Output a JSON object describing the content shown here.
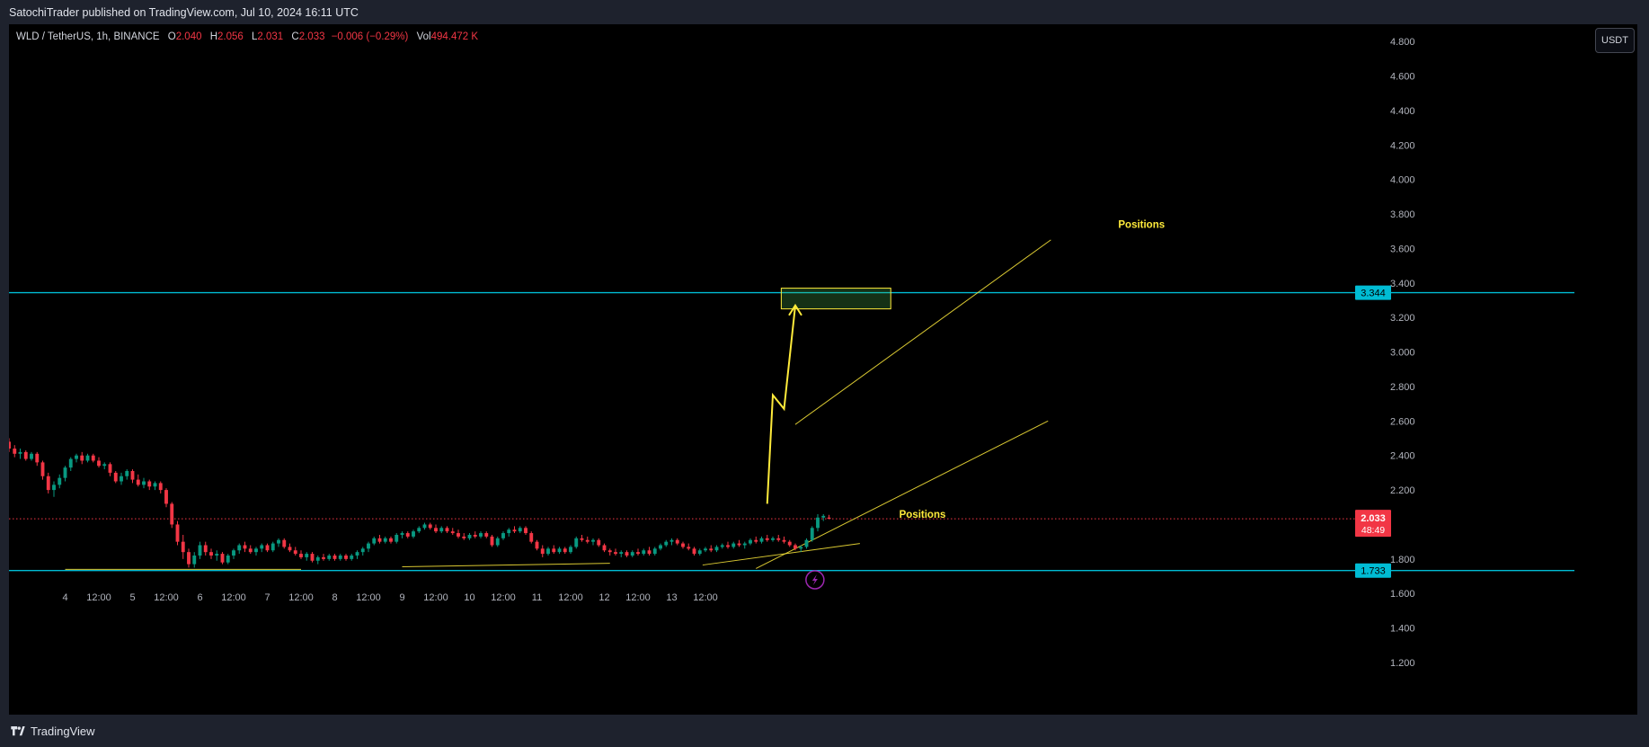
{
  "header": {
    "published": "SatochiTrader published on TradingView.com, Jul 10, 2024 16:11 UTC"
  },
  "legend": {
    "symbol": "WLD / TetherUS, 1h, BINANCE",
    "open_label": "O",
    "open": "2.040",
    "high_label": "H",
    "high": "2.056",
    "low_label": "L",
    "low": "2.031",
    "close_label": "C",
    "close": "2.033",
    "change": "−0.006 (−0.29%)",
    "vol_label": "Vol",
    "vol": "494.472 K"
  },
  "currency_button": "USDT",
  "brand": {
    "name": "TradingView",
    "icon": "tradingview-logo-icon"
  },
  "colors": {
    "background": "#000000",
    "up": "#089981",
    "down": "#f23645",
    "horizontal_level": "#00bcd4",
    "drawing": "#ffeb3b",
    "last_price_badge": "#f23645",
    "lightning": "#9c27b0"
  },
  "chart_data": {
    "type": "candlestick",
    "x_tick_labels": [
      "4",
      "12:00",
      "5",
      "12:00",
      "6",
      "12:00",
      "7",
      "12:00",
      "8",
      "12:00",
      "9",
      "12:00",
      "10",
      "12:00",
      "11",
      "12:00",
      "12",
      "12:00",
      "13",
      "12:00"
    ],
    "y_tick_labels": [
      "4.800",
      "4.600",
      "4.400",
      "4.200",
      "4.000",
      "3.800",
      "3.600",
      "3.400",
      "3.200",
      "3.000",
      "2.800",
      "2.600",
      "2.400",
      "2.200",
      "1.800",
      "1.600",
      "1.400",
      "1.200"
    ],
    "ylim": [
      1.08,
      4.9
    ],
    "x_range_hours": [
      -20,
      460
    ],
    "grid": false,
    "price_levels": [
      {
        "value": 3.344,
        "label": "3.344"
      },
      {
        "value": 1.733,
        "label": "1.733"
      }
    ],
    "last_price": {
      "value": 2.033,
      "label": "2.033",
      "countdown": "48:49"
    },
    "annotations": [
      {
        "text": "Positions",
        "x_hour": 375,
        "y": 3.72
      },
      {
        "text": "Positions",
        "x_hour": 297,
        "y": 2.04
      }
    ],
    "target_zone": {
      "x_start_hour": 255,
      "x_end_hour": 294,
      "y_low": 3.25,
      "y_high": 3.37
    },
    "projection_path": [
      [
        250,
        2.12
      ],
      [
        252,
        2.75
      ],
      [
        256,
        2.67
      ],
      [
        260,
        3.27
      ]
    ],
    "trend_lines": [
      {
        "from": [
          0,
          1.74
        ],
        "to": [
          84,
          1.74
        ]
      },
      {
        "from": [
          120,
          1.755
        ],
        "to": [
          194,
          1.775
        ]
      },
      {
        "from": [
          227,
          1.765
        ],
        "to": [
          283,
          1.89
        ]
      },
      {
        "from": [
          246,
          1.745
        ],
        "to": [
          350,
          2.6
        ]
      },
      {
        "from": [
          260,
          2.58
        ],
        "to": [
          351,
          3.65
        ]
      }
    ],
    "candles": [
      {
        "t": -20,
        "o": 2.48,
        "h": 2.5,
        "l": 2.42,
        "c": 2.44
      },
      {
        "t": -18,
        "o": 2.44,
        "h": 2.46,
        "l": 2.39,
        "c": 2.41
      },
      {
        "t": -16,
        "o": 2.41,
        "h": 2.44,
        "l": 2.38,
        "c": 2.42
      },
      {
        "t": -14,
        "o": 2.42,
        "h": 2.43,
        "l": 2.37,
        "c": 2.38
      },
      {
        "t": -12,
        "o": 2.38,
        "h": 2.42,
        "l": 2.37,
        "c": 2.41
      },
      {
        "t": -10,
        "o": 2.41,
        "h": 2.42,
        "l": 2.34,
        "c": 2.36
      },
      {
        "t": -8,
        "o": 2.36,
        "h": 2.37,
        "l": 2.26,
        "c": 2.28
      },
      {
        "t": -6,
        "o": 2.28,
        "h": 2.3,
        "l": 2.18,
        "c": 2.2
      },
      {
        "t": -4,
        "o": 2.2,
        "h": 2.25,
        "l": 2.16,
        "c": 2.23
      },
      {
        "t": -2,
        "o": 2.23,
        "h": 2.29,
        "l": 2.21,
        "c": 2.27
      },
      {
        "t": 0,
        "o": 2.27,
        "h": 2.34,
        "l": 2.25,
        "c": 2.33
      },
      {
        "t": 2,
        "o": 2.33,
        "h": 2.39,
        "l": 2.31,
        "c": 2.38
      },
      {
        "t": 4,
        "o": 2.38,
        "h": 2.41,
        "l": 2.36,
        "c": 2.4
      },
      {
        "t": 6,
        "o": 2.4,
        "h": 2.42,
        "l": 2.35,
        "c": 2.37
      },
      {
        "t": 8,
        "o": 2.37,
        "h": 2.41,
        "l": 2.36,
        "c": 2.4
      },
      {
        "t": 10,
        "o": 2.4,
        "h": 2.41,
        "l": 2.36,
        "c": 2.37
      },
      {
        "t": 12,
        "o": 2.37,
        "h": 2.39,
        "l": 2.33,
        "c": 2.34
      },
      {
        "t": 14,
        "o": 2.34,
        "h": 2.36,
        "l": 2.32,
        "c": 2.35
      },
      {
        "t": 16,
        "o": 2.35,
        "h": 2.36,
        "l": 2.28,
        "c": 2.3
      },
      {
        "t": 18,
        "o": 2.3,
        "h": 2.31,
        "l": 2.24,
        "c": 2.25
      },
      {
        "t": 20,
        "o": 2.25,
        "h": 2.3,
        "l": 2.23,
        "c": 2.28
      },
      {
        "t": 22,
        "o": 2.28,
        "h": 2.32,
        "l": 2.26,
        "c": 2.31
      },
      {
        "t": 24,
        "o": 2.31,
        "h": 2.32,
        "l": 2.24,
        "c": 2.26
      },
      {
        "t": 26,
        "o": 2.26,
        "h": 2.29,
        "l": 2.22,
        "c": 2.23
      },
      {
        "t": 28,
        "o": 2.23,
        "h": 2.27,
        "l": 2.21,
        "c": 2.25
      },
      {
        "t": 30,
        "o": 2.25,
        "h": 2.26,
        "l": 2.2,
        "c": 2.22
      },
      {
        "t": 32,
        "o": 2.22,
        "h": 2.25,
        "l": 2.2,
        "c": 2.24
      },
      {
        "t": 34,
        "o": 2.24,
        "h": 2.25,
        "l": 2.18,
        "c": 2.2
      },
      {
        "t": 36,
        "o": 2.2,
        "h": 2.21,
        "l": 2.1,
        "c": 2.12
      },
      {
        "t": 38,
        "o": 2.12,
        "h": 2.13,
        "l": 1.98,
        "c": 2.0
      },
      {
        "t": 40,
        "o": 2.0,
        "h": 2.02,
        "l": 1.88,
        "c": 1.9
      },
      {
        "t": 42,
        "o": 1.9,
        "h": 1.94,
        "l": 1.8,
        "c": 1.84
      },
      {
        "t": 44,
        "o": 1.84,
        "h": 1.86,
        "l": 1.75,
        "c": 1.77
      },
      {
        "t": 46,
        "o": 1.77,
        "h": 1.84,
        "l": 1.75,
        "c": 1.82
      },
      {
        "t": 48,
        "o": 1.82,
        "h": 1.9,
        "l": 1.8,
        "c": 1.88
      },
      {
        "t": 50,
        "o": 1.88,
        "h": 1.9,
        "l": 1.82,
        "c": 1.84
      },
      {
        "t": 52,
        "o": 1.84,
        "h": 1.86,
        "l": 1.8,
        "c": 1.82
      },
      {
        "t": 54,
        "o": 1.82,
        "h": 1.85,
        "l": 1.79,
        "c": 1.83
      },
      {
        "t": 56,
        "o": 1.83,
        "h": 1.84,
        "l": 1.77,
        "c": 1.78
      },
      {
        "t": 58,
        "o": 1.78,
        "h": 1.83,
        "l": 1.77,
        "c": 1.82
      },
      {
        "t": 60,
        "o": 1.82,
        "h": 1.86,
        "l": 1.8,
        "c": 1.85
      },
      {
        "t": 62,
        "o": 1.85,
        "h": 1.89,
        "l": 1.83,
        "c": 1.88
      },
      {
        "t": 64,
        "o": 1.88,
        "h": 1.9,
        "l": 1.84,
        "c": 1.86
      },
      {
        "t": 66,
        "o": 1.86,
        "h": 1.88,
        "l": 1.83,
        "c": 1.84
      },
      {
        "t": 68,
        "o": 1.84,
        "h": 1.87,
        "l": 1.82,
        "c": 1.86
      },
      {
        "t": 70,
        "o": 1.86,
        "h": 1.89,
        "l": 1.84,
        "c": 1.88
      },
      {
        "t": 72,
        "o": 1.88,
        "h": 1.89,
        "l": 1.84,
        "c": 1.85
      },
      {
        "t": 74,
        "o": 1.85,
        "h": 1.9,
        "l": 1.84,
        "c": 1.89
      },
      {
        "t": 76,
        "o": 1.89,
        "h": 1.92,
        "l": 1.87,
        "c": 1.91
      },
      {
        "t": 78,
        "o": 1.91,
        "h": 1.92,
        "l": 1.86,
        "c": 1.87
      },
      {
        "t": 80,
        "o": 1.87,
        "h": 1.89,
        "l": 1.84,
        "c": 1.85
      },
      {
        "t": 82,
        "o": 1.85,
        "h": 1.87,
        "l": 1.82,
        "c": 1.83
      },
      {
        "t": 84,
        "o": 1.83,
        "h": 1.85,
        "l": 1.8,
        "c": 1.81
      },
      {
        "t": 86,
        "o": 1.81,
        "h": 1.84,
        "l": 1.79,
        "c": 1.83
      },
      {
        "t": 88,
        "o": 1.83,
        "h": 1.84,
        "l": 1.78,
        "c": 1.79
      },
      {
        "t": 90,
        "o": 1.79,
        "h": 1.82,
        "l": 1.77,
        "c": 1.81
      },
      {
        "t": 92,
        "o": 1.81,
        "h": 1.83,
        "l": 1.79,
        "c": 1.8
      },
      {
        "t": 94,
        "o": 1.8,
        "h": 1.83,
        "l": 1.79,
        "c": 1.82
      },
      {
        "t": 96,
        "o": 1.82,
        "h": 1.83,
        "l": 1.79,
        "c": 1.8
      },
      {
        "t": 98,
        "o": 1.8,
        "h": 1.83,
        "l": 1.79,
        "c": 1.82
      },
      {
        "t": 100,
        "o": 1.82,
        "h": 1.83,
        "l": 1.79,
        "c": 1.8
      },
      {
        "t": 102,
        "o": 1.8,
        "h": 1.83,
        "l": 1.79,
        "c": 1.82
      },
      {
        "t": 104,
        "o": 1.82,
        "h": 1.85,
        "l": 1.8,
        "c": 1.84
      },
      {
        "t": 106,
        "o": 1.84,
        "h": 1.87,
        "l": 1.82,
        "c": 1.86
      },
      {
        "t": 108,
        "o": 1.86,
        "h": 1.9,
        "l": 1.84,
        "c": 1.89
      },
      {
        "t": 110,
        "o": 1.89,
        "h": 1.93,
        "l": 1.88,
        "c": 1.92
      },
      {
        "t": 112,
        "o": 1.92,
        "h": 1.94,
        "l": 1.89,
        "c": 1.9
      },
      {
        "t": 114,
        "o": 1.9,
        "h": 1.93,
        "l": 1.89,
        "c": 1.92
      },
      {
        "t": 116,
        "o": 1.92,
        "h": 1.93,
        "l": 1.89,
        "c": 1.9
      },
      {
        "t": 118,
        "o": 1.9,
        "h": 1.95,
        "l": 1.89,
        "c": 1.94
      },
      {
        "t": 120,
        "o": 1.94,
        "h": 1.96,
        "l": 1.92,
        "c": 1.95
      },
      {
        "t": 122,
        "o": 1.95,
        "h": 1.96,
        "l": 1.92,
        "c": 1.93
      },
      {
        "t": 124,
        "o": 1.93,
        "h": 1.97,
        "l": 1.92,
        "c": 1.96
      },
      {
        "t": 126,
        "o": 1.96,
        "h": 1.99,
        "l": 1.95,
        "c": 1.98
      },
      {
        "t": 128,
        "o": 1.98,
        "h": 2.01,
        "l": 1.97,
        "c": 2.0
      },
      {
        "t": 130,
        "o": 2.0,
        "h": 2.01,
        "l": 1.97,
        "c": 1.98
      },
      {
        "t": 132,
        "o": 1.98,
        "h": 2.0,
        "l": 1.95,
        "c": 1.96
      },
      {
        "t": 134,
        "o": 1.96,
        "h": 1.99,
        "l": 1.95,
        "c": 1.98
      },
      {
        "t": 136,
        "o": 1.98,
        "h": 1.99,
        "l": 1.95,
        "c": 1.96
      },
      {
        "t": 138,
        "o": 1.96,
        "h": 1.98,
        "l": 1.94,
        "c": 1.95
      },
      {
        "t": 140,
        "o": 1.95,
        "h": 1.97,
        "l": 1.92,
        "c": 1.93
      },
      {
        "t": 142,
        "o": 1.93,
        "h": 1.95,
        "l": 1.91,
        "c": 1.92
      },
      {
        "t": 144,
        "o": 1.92,
        "h": 1.95,
        "l": 1.91,
        "c": 1.94
      },
      {
        "t": 146,
        "o": 1.94,
        "h": 1.96,
        "l": 1.92,
        "c": 1.93
      },
      {
        "t": 148,
        "o": 1.93,
        "h": 1.96,
        "l": 1.92,
        "c": 1.95
      },
      {
        "t": 150,
        "o": 1.95,
        "h": 1.96,
        "l": 1.92,
        "c": 1.93
      },
      {
        "t": 152,
        "o": 1.93,
        "h": 1.94,
        "l": 1.87,
        "c": 1.88
      },
      {
        "t": 154,
        "o": 1.88,
        "h": 1.93,
        "l": 1.87,
        "c": 1.92
      },
      {
        "t": 156,
        "o": 1.92,
        "h": 1.96,
        "l": 1.91,
        "c": 1.95
      },
      {
        "t": 158,
        "o": 1.95,
        "h": 1.98,
        "l": 1.93,
        "c": 1.97
      },
      {
        "t": 160,
        "o": 1.97,
        "h": 1.99,
        "l": 1.95,
        "c": 1.96
      },
      {
        "t": 162,
        "o": 1.96,
        "h": 1.99,
        "l": 1.95,
        "c": 1.98
      },
      {
        "t": 164,
        "o": 1.98,
        "h": 1.99,
        "l": 1.94,
        "c": 1.95
      },
      {
        "t": 166,
        "o": 1.95,
        "h": 1.96,
        "l": 1.89,
        "c": 1.9
      },
      {
        "t": 168,
        "o": 1.9,
        "h": 1.91,
        "l": 1.85,
        "c": 1.86
      },
      {
        "t": 170,
        "o": 1.86,
        "h": 1.88,
        "l": 1.81,
        "c": 1.83
      },
      {
        "t": 172,
        "o": 1.83,
        "h": 1.87,
        "l": 1.82,
        "c": 1.86
      },
      {
        "t": 174,
        "o": 1.86,
        "h": 1.88,
        "l": 1.83,
        "c": 1.84
      },
      {
        "t": 176,
        "o": 1.84,
        "h": 1.87,
        "l": 1.83,
        "c": 1.86
      },
      {
        "t": 178,
        "o": 1.86,
        "h": 1.87,
        "l": 1.83,
        "c": 1.84
      },
      {
        "t": 180,
        "o": 1.84,
        "h": 1.88,
        "l": 1.83,
        "c": 1.87
      },
      {
        "t": 182,
        "o": 1.87,
        "h": 1.93,
        "l": 1.86,
        "c": 1.92
      },
      {
        "t": 184,
        "o": 1.92,
        "h": 1.94,
        "l": 1.9,
        "c": 1.91
      },
      {
        "t": 186,
        "o": 1.91,
        "h": 1.93,
        "l": 1.89,
        "c": 1.9
      },
      {
        "t": 188,
        "o": 1.9,
        "h": 1.92,
        "l": 1.88,
        "c": 1.91
      },
      {
        "t": 190,
        "o": 1.91,
        "h": 1.92,
        "l": 1.87,
        "c": 1.88
      },
      {
        "t": 192,
        "o": 1.88,
        "h": 1.89,
        "l": 1.84,
        "c": 1.85
      },
      {
        "t": 194,
        "o": 1.85,
        "h": 1.86,
        "l": 1.82,
        "c": 1.84
      },
      {
        "t": 196,
        "o": 1.84,
        "h": 1.86,
        "l": 1.82,
        "c": 1.83
      },
      {
        "t": 198,
        "o": 1.83,
        "h": 1.85,
        "l": 1.81,
        "c": 1.84
      },
      {
        "t": 200,
        "o": 1.84,
        "h": 1.85,
        "l": 1.81,
        "c": 1.82
      },
      {
        "t": 202,
        "o": 1.82,
        "h": 1.85,
        "l": 1.81,
        "c": 1.84
      },
      {
        "t": 204,
        "o": 1.84,
        "h": 1.86,
        "l": 1.82,
        "c": 1.83
      },
      {
        "t": 206,
        "o": 1.83,
        "h": 1.86,
        "l": 1.82,
        "c": 1.85
      },
      {
        "t": 208,
        "o": 1.85,
        "h": 1.87,
        "l": 1.82,
        "c": 1.83
      },
      {
        "t": 210,
        "o": 1.83,
        "h": 1.87,
        "l": 1.82,
        "c": 1.86
      },
      {
        "t": 212,
        "o": 1.86,
        "h": 1.89,
        "l": 1.85,
        "c": 1.88
      },
      {
        "t": 214,
        "o": 1.88,
        "h": 1.91,
        "l": 1.87,
        "c": 1.9
      },
      {
        "t": 216,
        "o": 1.9,
        "h": 1.92,
        "l": 1.88,
        "c": 1.91
      },
      {
        "t": 218,
        "o": 1.91,
        "h": 1.92,
        "l": 1.88,
        "c": 1.89
      },
      {
        "t": 220,
        "o": 1.89,
        "h": 1.9,
        "l": 1.86,
        "c": 1.87
      },
      {
        "t": 222,
        "o": 1.87,
        "h": 1.89,
        "l": 1.85,
        "c": 1.86
      },
      {
        "t": 224,
        "o": 1.86,
        "h": 1.87,
        "l": 1.82,
        "c": 1.83
      },
      {
        "t": 226,
        "o": 1.83,
        "h": 1.86,
        "l": 1.82,
        "c": 1.85
      },
      {
        "t": 228,
        "o": 1.85,
        "h": 1.87,
        "l": 1.84,
        "c": 1.86
      },
      {
        "t": 230,
        "o": 1.86,
        "h": 1.88,
        "l": 1.84,
        "c": 1.85
      },
      {
        "t": 232,
        "o": 1.85,
        "h": 1.88,
        "l": 1.84,
        "c": 1.87
      },
      {
        "t": 234,
        "o": 1.87,
        "h": 1.89,
        "l": 1.86,
        "c": 1.88
      },
      {
        "t": 236,
        "o": 1.88,
        "h": 1.9,
        "l": 1.86,
        "c": 1.87
      },
      {
        "t": 238,
        "o": 1.87,
        "h": 1.9,
        "l": 1.86,
        "c": 1.89
      },
      {
        "t": 240,
        "o": 1.89,
        "h": 1.91,
        "l": 1.87,
        "c": 1.88
      },
      {
        "t": 242,
        "o": 1.88,
        "h": 1.9,
        "l": 1.86,
        "c": 1.89
      },
      {
        "t": 244,
        "o": 1.89,
        "h": 1.92,
        "l": 1.88,
        "c": 1.91
      },
      {
        "t": 246,
        "o": 1.91,
        "h": 1.93,
        "l": 1.89,
        "c": 1.9
      },
      {
        "t": 248,
        "o": 1.9,
        "h": 1.93,
        "l": 1.89,
        "c": 1.92
      },
      {
        "t": 250,
        "o": 1.92,
        "h": 1.94,
        "l": 1.9,
        "c": 1.91
      },
      {
        "t": 252,
        "o": 1.91,
        "h": 1.93,
        "l": 1.9,
        "c": 1.92
      },
      {
        "t": 254,
        "o": 1.92,
        "h": 1.94,
        "l": 1.9,
        "c": 1.91
      },
      {
        "t": 256,
        "o": 1.91,
        "h": 1.93,
        "l": 1.89,
        "c": 1.9
      },
      {
        "t": 258,
        "o": 1.9,
        "h": 1.91,
        "l": 1.87,
        "c": 1.88
      },
      {
        "t": 260,
        "o": 1.88,
        "h": 1.89,
        "l": 1.85,
        "c": 1.86
      },
      {
        "t": 262,
        "o": 1.86,
        "h": 1.88,
        "l": 1.84,
        "c": 1.87
      },
      {
        "t": 264,
        "o": 1.87,
        "h": 1.92,
        "l": 1.86,
        "c": 1.91
      },
      {
        "t": 266,
        "o": 1.91,
        "h": 1.99,
        "l": 1.9,
        "c": 1.98
      },
      {
        "t": 268,
        "o": 1.98,
        "h": 2.06,
        "l": 1.96,
        "c": 2.04
      },
      {
        "t": 270,
        "o": 2.04,
        "h": 2.06,
        "l": 2.02,
        "c": 2.05
      },
      {
        "t": 272,
        "o": 2.04,
        "h": 2.056,
        "l": 2.031,
        "c": 2.033
      }
    ]
  }
}
